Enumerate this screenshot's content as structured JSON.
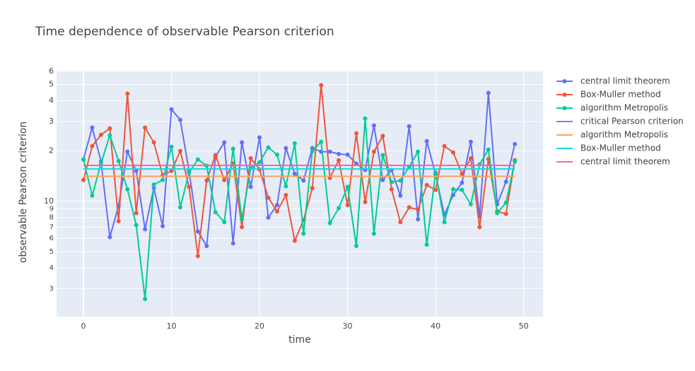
{
  "chart_data": {
    "type": "line",
    "title": "Time dependence of observable Pearson criterion",
    "x_label": "time",
    "y_label": "observable Pearson criterion",
    "log_y": true,
    "grid": true,
    "legend": "right",
    "xlim": [
      -3.05,
      52.2
    ],
    "xticks": [
      0,
      10,
      20,
      30,
      40,
      50
    ],
    "ylim": [
      2.04,
      60.5
    ],
    "yticks": [
      3,
      4,
      5,
      6,
      7,
      8,
      9,
      10,
      {
        "value": 20,
        "label": "2"
      },
      {
        "value": 30,
        "label": "3"
      },
      {
        "value": 40,
        "label": "4"
      },
      {
        "value": 50,
        "label": "5"
      },
      {
        "value": 60,
        "label": "6"
      }
    ],
    "x": [
      0,
      1,
      2,
      3,
      4,
      5,
      6,
      7,
      8,
      9,
      10,
      11,
      12,
      13,
      14,
      15,
      16,
      17,
      18,
      19,
      20,
      21,
      22,
      23,
      24,
      25,
      26,
      27,
      28,
      29,
      30,
      31,
      32,
      33,
      34,
      35,
      36,
      37,
      38,
      39,
      40,
      41,
      42,
      43,
      44,
      45,
      46,
      47,
      48,
      49
    ],
    "series": [
      {
        "name": "central limit theorem",
        "color": "#636efa",
        "mode": "lines+markers",
        "values": [
          17.8,
          27.6,
          17.3,
          6.1,
          9.4,
          19.8,
          15.2,
          6.8,
          12.0,
          7.1,
          35.5,
          30.7,
          15.2,
          6.6,
          5.4,
          18.5,
          22.5,
          5.6,
          22.5,
          12.2,
          24.1,
          8.0,
          9.5,
          20.8,
          14.6,
          13.3,
          20.8,
          19.8,
          19.8,
          19.2,
          19.0,
          16.8,
          15.4,
          28.4,
          13.4,
          15.4,
          10.8,
          28.1,
          7.8,
          22.9,
          14.5,
          8.3,
          10.9,
          12.9,
          22.7,
          8.1,
          44.5,
          9.6,
          13.1,
          22.0
        ]
      },
      {
        "name": "Box-Muller method",
        "color": "#ef553b",
        "mode": "lines+markers",
        "values": [
          13.4,
          21.4,
          25.0,
          27.3,
          7.6,
          44.1,
          8.5,
          27.6,
          22.5,
          14.3,
          15.2,
          20.0,
          12.2,
          4.7,
          13.3,
          18.9,
          13.4,
          16.8,
          7.0,
          18.1,
          15.5,
          10.5,
          8.7,
          10.9,
          5.8,
          7.7,
          12.0,
          49.5,
          13.8,
          17.6,
          9.5,
          25.5,
          9.9,
          19.8,
          24.6,
          11.8,
          7.5,
          9.2,
          8.9,
          12.5,
          11.7,
          21.4,
          19.6,
          14.6,
          18.1,
          7.0,
          17.9,
          8.7,
          8.4,
          17.6
        ]
      },
      {
        "name": "algorithm Metropolis",
        "color": "#00cc96",
        "mode": "lines+markers",
        "values": [
          17.8,
          10.8,
          16.9,
          24.8,
          17.4,
          11.8,
          7.2,
          2.6,
          12.6,
          13.4,
          21.2,
          9.2,
          14.9,
          17.8,
          16.3,
          8.6,
          7.5,
          20.6,
          7.8,
          15.8,
          17.1,
          21.0,
          19.0,
          12.3,
          22.2,
          6.4,
          20.0,
          22.7,
          7.4,
          9.1,
          12.2,
          5.4,
          31.3,
          6.4,
          18.9,
          13.0,
          13.3,
          16.1,
          19.8,
          5.5,
          14.9,
          7.5,
          11.8,
          11.7,
          9.6,
          16.6,
          20.4,
          8.5,
          9.8,
          17.3
        ]
      },
      {
        "name": "critical Pearson criterion",
        "color": "#ab63fa",
        "mode": "lines",
        "x": [
          0,
          49
        ],
        "values": [
          14.1,
          14.1
        ]
      },
      {
        "name": "algorithm Metropolis",
        "color": "#ffa15a",
        "mode": "lines",
        "x": [
          0,
          49
        ],
        "values": [
          14.1,
          14.1
        ]
      },
      {
        "name": "Box-Muller method",
        "color": "#19d3f3",
        "mode": "lines",
        "x": [
          0,
          49
        ],
        "values": [
          15.6,
          15.6
        ]
      },
      {
        "name": "central limit theorem",
        "color": "#ff6692",
        "mode": "lines",
        "x": [
          0,
          49
        ],
        "values": [
          16.4,
          16.4
        ]
      }
    ]
  }
}
